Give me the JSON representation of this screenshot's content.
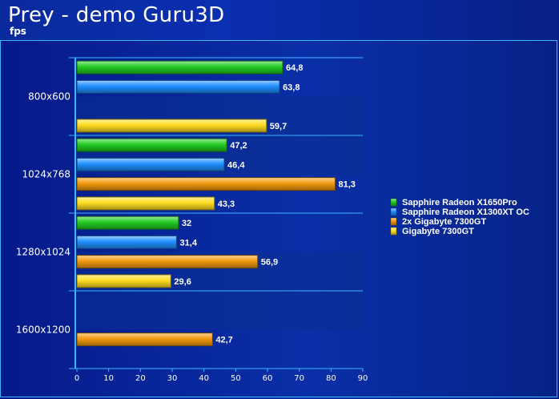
{
  "chart_data": {
    "type": "bar",
    "orientation": "horizontal",
    "title": "Prey - demo Guru3D",
    "subtitle": "fps",
    "categories": [
      "800x600",
      "1024x768",
      "1280x1024",
      "1600x1200"
    ],
    "series": [
      {
        "name": "Sapphire Radeon X1650Pro",
        "color": "#22cc22",
        "values": [
          64.8,
          47.2,
          32,
          null
        ],
        "labels": [
          "64,8",
          "47,2",
          "32",
          null
        ]
      },
      {
        "name": "Sapphire Radeon X1300XT OC",
        "color": "#1f8fff",
        "values": [
          63.8,
          46.4,
          31.4,
          null
        ],
        "labels": [
          "63,8",
          "46,4",
          "31,4",
          null
        ]
      },
      {
        "name": "2x Gigabyte 7300GT",
        "color": "#f29a0f",
        "values": [
          null,
          81.3,
          56.9,
          42.7
        ],
        "labels": [
          null,
          "81,3",
          "56,9",
          "42,7"
        ]
      },
      {
        "name": "Gigabyte 7300GT",
        "color": "#ffdd22",
        "values": [
          59.7,
          43.3,
          29.6,
          null
        ],
        "labels": [
          "59,7",
          "43,3",
          "29,6",
          null
        ]
      }
    ],
    "xlim": [
      0,
      90
    ],
    "xticks": [
      "0",
      "10",
      "20",
      "30",
      "40",
      "50",
      "60",
      "70",
      "80",
      "90"
    ],
    "legend_position": "right",
    "grid": false
  }
}
